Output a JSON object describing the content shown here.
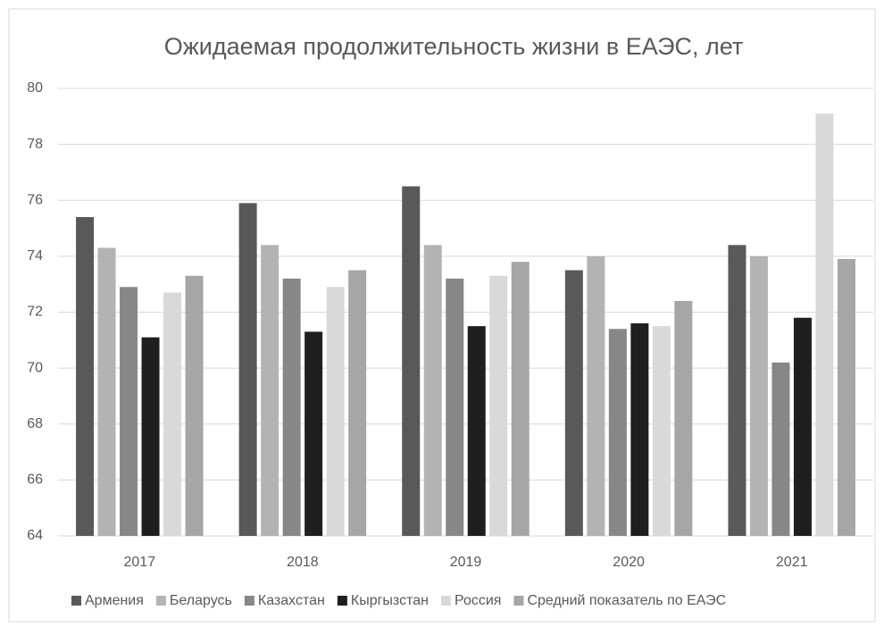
{
  "chart_data": {
    "type": "bar",
    "title": "Ожидаемая продолжительность жизни в ЕАЭС, лет",
    "categories": [
      "2017",
      "2018",
      "2019",
      "2020",
      "2021"
    ],
    "series": [
      {
        "name": "Армения",
        "color": "#595959",
        "values": [
          75.4,
          75.9,
          76.5,
          73.5,
          74.4
        ]
      },
      {
        "name": "Беларусь",
        "color": "#b3b3b3",
        "values": [
          74.3,
          74.4,
          74.4,
          74.0,
          74.0
        ]
      },
      {
        "name": "Казахстан",
        "color": "#878787",
        "values": [
          72.9,
          73.2,
          73.2,
          71.4,
          70.2
        ]
      },
      {
        "name": "Кыргызстан",
        "color": "#1f1f1f",
        "values": [
          71.1,
          71.3,
          71.5,
          71.6,
          71.8
        ]
      },
      {
        "name": "Россия",
        "color": "#d9d9d9",
        "values": [
          72.7,
          72.9,
          73.3,
          71.5,
          79.1
        ]
      },
      {
        "name": "Средний показатель по ЕАЭС",
        "color": "#a6a6a6",
        "values": [
          73.3,
          73.5,
          73.8,
          72.4,
          73.9
        ]
      }
    ],
    "ylim": [
      64,
      80
    ],
    "yticks": [
      64,
      66,
      68,
      70,
      72,
      74,
      76,
      78,
      80
    ],
    "grid": true,
    "legend": "bottom"
  }
}
